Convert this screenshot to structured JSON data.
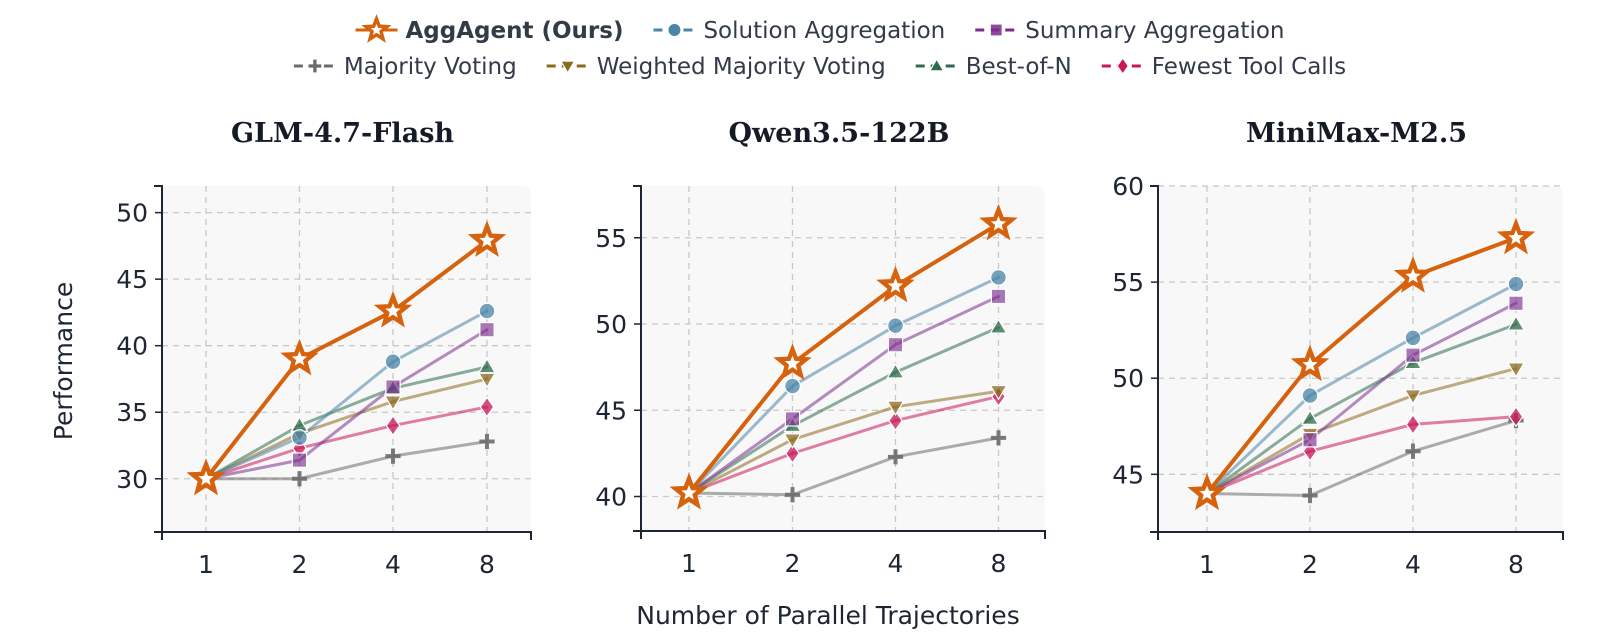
{
  "legend": {
    "items": [
      {
        "key": "aggagent",
        "label": "AggAgent (Ours)",
        "bold": true
      },
      {
        "key": "solution",
        "label": "Solution Aggregation"
      },
      {
        "key": "summary",
        "label": "Summary Aggregation"
      },
      {
        "key": "majority",
        "label": "Majority Voting"
      },
      {
        "key": "weighted",
        "label": "Weighted Majority Voting"
      },
      {
        "key": "bestofn",
        "label": "Best-of-N"
      },
      {
        "key": "fewest",
        "label": "Fewest Tool Calls"
      }
    ],
    "rows": [
      [
        "aggagent",
        "solution",
        "summary"
      ],
      [
        "majority",
        "weighted",
        "bestofn",
        "fewest"
      ]
    ]
  },
  "series_style": {
    "aggagent": {
      "color": "#D6620E",
      "marker": "star"
    },
    "solution": {
      "color": "#4A84A8",
      "marker": "circle"
    },
    "summary": {
      "color": "#7B2D8E",
      "marker": "square"
    },
    "majority": {
      "color": "#6B6B6B",
      "marker": "plus"
    },
    "weighted": {
      "color": "#8C6A1C",
      "marker": "triangle-down"
    },
    "bestofn": {
      "color": "#2E6B4A",
      "marker": "triangle-up"
    },
    "fewest": {
      "color": "#C8185A",
      "marker": "diamond"
    }
  },
  "shared": {
    "xlabel": "Number of Parallel Trajectories",
    "ylabel": "Performance"
  },
  "chart_data": [
    {
      "type": "line",
      "title": "GLM-4.7-Flash",
      "xlabel": "Number of Parallel Trajectories",
      "ylabel": "Performance",
      "categories": [
        "1",
        "2",
        "4",
        "8"
      ],
      "ylim": [
        26,
        52
      ],
      "yticks": [
        30,
        35,
        40,
        45,
        50
      ],
      "grid": true,
      "series": [
        {
          "key": "majority",
          "name": "Majority Voting",
          "values": [
            30.0,
            30.0,
            31.7,
            32.8
          ]
        },
        {
          "key": "fewest",
          "name": "Fewest Tool Calls",
          "values": [
            30.0,
            32.3,
            34.0,
            35.4
          ]
        },
        {
          "key": "weighted",
          "name": "Weighted Majority Voting",
          "values": [
            30.0,
            33.4,
            35.8,
            37.5
          ]
        },
        {
          "key": "bestofn",
          "name": "Best-of-N",
          "values": [
            30.0,
            34.0,
            36.8,
            38.4
          ]
        },
        {
          "key": "summary",
          "name": "Summary Aggregation",
          "values": [
            30.0,
            31.4,
            36.9,
            41.2
          ]
        },
        {
          "key": "solution",
          "name": "Solution Aggregation",
          "values": [
            30.0,
            33.1,
            38.8,
            42.6
          ]
        },
        {
          "key": "aggagent",
          "name": "AggAgent (Ours)",
          "values": [
            30.0,
            39.0,
            42.6,
            47.9
          ]
        }
      ]
    },
    {
      "type": "line",
      "title": "Qwen3.5-122B",
      "xlabel": "Number of Parallel Trajectories",
      "ylabel": "",
      "categories": [
        "1",
        "2",
        "4",
        "8"
      ],
      "ylim": [
        38,
        58
      ],
      "yticks": [
        40,
        45,
        50,
        55
      ],
      "grid": true,
      "series": [
        {
          "key": "majority",
          "name": "Majority Voting",
          "values": [
            40.2,
            40.1,
            42.3,
            43.4
          ]
        },
        {
          "key": "fewest",
          "name": "Fewest Tool Calls",
          "values": [
            40.2,
            42.5,
            44.4,
            45.8
          ]
        },
        {
          "key": "weighted",
          "name": "Weighted Majority Voting",
          "values": [
            40.2,
            43.3,
            45.2,
            46.1
          ]
        },
        {
          "key": "bestofn",
          "name": "Best-of-N",
          "values": [
            40.2,
            44.1,
            47.2,
            49.8
          ]
        },
        {
          "key": "summary",
          "name": "Summary Aggregation",
          "values": [
            40.2,
            44.5,
            48.8,
            51.6
          ]
        },
        {
          "key": "solution",
          "name": "Solution Aggregation",
          "values": [
            40.2,
            46.4,
            49.9,
            52.7
          ]
        },
        {
          "key": "aggagent",
          "name": "AggAgent (Ours)",
          "values": [
            40.2,
            47.7,
            52.2,
            55.8
          ]
        }
      ]
    },
    {
      "type": "line",
      "title": "MiniMax-M2.5",
      "xlabel": "Number of Parallel Trajectories",
      "ylabel": "",
      "categories": [
        "1",
        "2",
        "4",
        "8"
      ],
      "ylim": [
        42,
        60
      ],
      "yticks": [
        45,
        50,
        55,
        60
      ],
      "grid": true,
      "series": [
        {
          "key": "majority",
          "name": "Majority Voting",
          "values": [
            44.0,
            43.9,
            46.2,
            47.8
          ]
        },
        {
          "key": "fewest",
          "name": "Fewest Tool Calls",
          "values": [
            44.0,
            46.2,
            47.6,
            48.0
          ]
        },
        {
          "key": "weighted",
          "name": "Weighted Majority Voting",
          "values": [
            44.0,
            47.1,
            49.1,
            50.5
          ]
        },
        {
          "key": "bestofn",
          "name": "Best-of-N",
          "values": [
            44.0,
            47.9,
            50.8,
            52.8
          ]
        },
        {
          "key": "summary",
          "name": "Summary Aggregation",
          "values": [
            44.0,
            46.8,
            51.2,
            53.9
          ]
        },
        {
          "key": "solution",
          "name": "Solution Aggregation",
          "values": [
            44.0,
            49.1,
            52.1,
            54.9
          ]
        },
        {
          "key": "aggagent",
          "name": "AggAgent (Ours)",
          "values": [
            44.0,
            50.7,
            55.3,
            57.3
          ]
        }
      ]
    }
  ]
}
